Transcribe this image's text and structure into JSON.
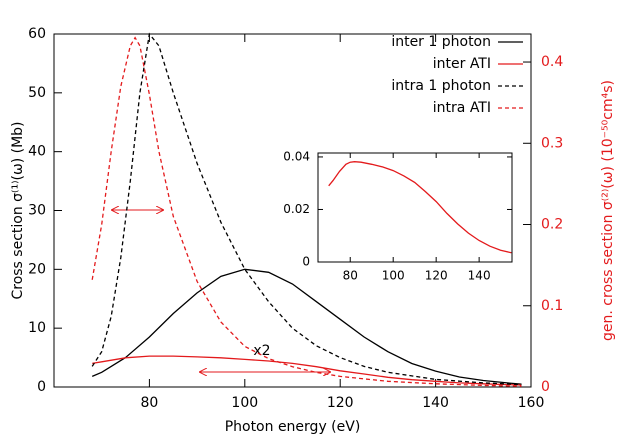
{
  "chart_data": [
    {
      "type": "line",
      "xlabel": "Photon energy (eV)",
      "ylabel": "Cross section σ⁽¹⁾(ω)  (Mb)",
      "y2label": "gen. cross section σ⁽²⁾(ω)  (10⁻⁵⁰cm⁴s)",
      "annotations": [
        "x2"
      ],
      "xlim": [
        60,
        160
      ],
      "xticks": [
        80,
        100,
        120,
        140,
        160
      ],
      "ylim": [
        0,
        60
      ],
      "yticks": [
        0,
        10,
        20,
        30,
        40,
        50,
        60
      ],
      "y2lim": [
        0,
        0.4345
      ],
      "y2ticks": [
        0,
        0.1,
        0.2,
        0.3,
        0.4
      ],
      "y2color": "#e31a1c",
      "legend": "upper right",
      "series": [
        {
          "name": "inter 1 photon",
          "color": "#000000",
          "dashed": false,
          "x": [
            68,
            70,
            75,
            80,
            85,
            90,
            95,
            100,
            105,
            110,
            115,
            120,
            125,
            130,
            135,
            140,
            145,
            150,
            155,
            158
          ],
          "values": [
            1.8,
            2.5,
            5,
            8.5,
            12.5,
            16,
            18.8,
            20,
            19.5,
            17.5,
            14.5,
            11.5,
            8.5,
            6,
            4,
            2.7,
            1.7,
            1.1,
            0.7,
            0.5
          ]
        },
        {
          "name": "inter ATI",
          "color": "#e31a1c",
          "dashed": false,
          "axis": "y2",
          "x": [
            68,
            70,
            75,
            80,
            85,
            90,
            95,
            100,
            105,
            110,
            115,
            120,
            125,
            130,
            135,
            140,
            145,
            150,
            155,
            158
          ],
          "values": [
            0.029,
            0.031,
            0.036,
            0.038,
            0.038,
            0.037,
            0.036,
            0.034,
            0.032,
            0.029,
            0.025,
            0.02,
            0.016,
            0.012,
            0.009,
            0.007,
            0.005,
            0.004,
            0.003,
            0.0025
          ]
        },
        {
          "name": "intra 1 photon",
          "color": "#000000",
          "dashed": true,
          "x": [
            68,
            70,
            72,
            74,
            76,
            78,
            80,
            82,
            85,
            90,
            95,
            100,
            105,
            110,
            115,
            120,
            125,
            130,
            140,
            150,
            158
          ],
          "values": [
            3.5,
            6,
            12,
            22,
            35,
            50,
            60,
            58,
            50,
            38,
            28,
            20,
            14.5,
            10,
            7,
            5,
            3.5,
            2.5,
            1.3,
            0.7,
            0.4
          ]
        },
        {
          "name": "intra ATI",
          "color": "#e31a1c",
          "dashed": true,
          "axis": "y2",
          "x": [
            68,
            70,
            72,
            74,
            76,
            77,
            78,
            80,
            82,
            85,
            90,
            95,
            100,
            105,
            110,
            115,
            120,
            130,
            140,
            150,
            158
          ],
          "values": [
            0.132,
            0.2,
            0.29,
            0.37,
            0.42,
            0.43,
            0.42,
            0.36,
            0.29,
            0.21,
            0.13,
            0.08,
            0.05,
            0.035,
            0.025,
            0.018,
            0.013,
            0.007,
            0.004,
            0.002,
            0.001
          ]
        }
      ]
    },
    {
      "type": "line",
      "xlim": [
        65,
        155.3
      ],
      "xticks": [
        80,
        100,
        120,
        140
      ],
      "ylim": [
        0,
        0.0415
      ],
      "yticks": [
        0,
        0.02,
        0.04
      ],
      "series": [
        {
          "color": "#e31a1c",
          "dashed": false,
          "x": [
            70,
            72,
            75,
            78,
            80,
            82,
            85,
            90,
            95,
            100,
            105,
            110,
            115,
            120,
            125,
            130,
            135,
            140,
            145,
            150,
            155
          ],
          "values": [
            0.029,
            0.031,
            0.0345,
            0.0372,
            0.038,
            0.0382,
            0.038,
            0.0372,
            0.0362,
            0.0348,
            0.0328,
            0.0303,
            0.0268,
            0.023,
            0.0185,
            0.0145,
            0.011,
            0.0082,
            0.006,
            0.0045,
            0.0035
          ]
        }
      ]
    }
  ]
}
